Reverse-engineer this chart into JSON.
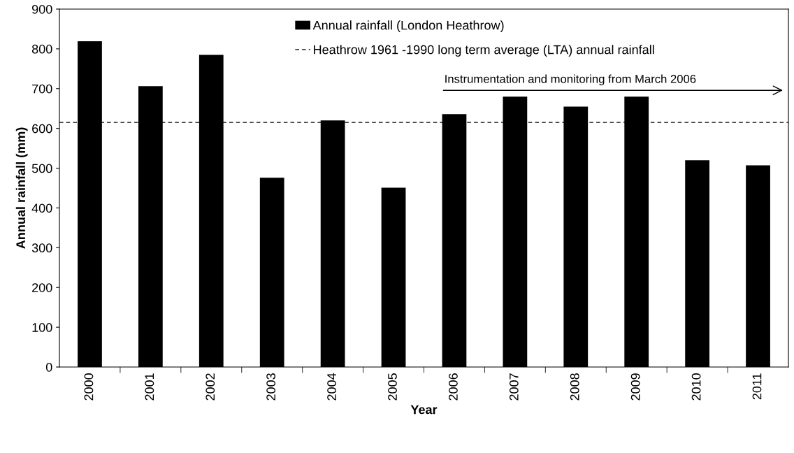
{
  "chart_data": {
    "type": "bar",
    "categories": [
      "2000",
      "2001",
      "2002",
      "2003",
      "2004",
      "2005",
      "2006",
      "2007",
      "2008",
      "2009",
      "2010",
      "2011"
    ],
    "series": [
      {
        "name": "Annual rainfall (London Heathrow)",
        "color": "#000000",
        "values": [
          819,
          706,
          785,
          476,
          620,
          451,
          636,
          680,
          655,
          680,
          520,
          507
        ]
      }
    ],
    "xlabel": "Year",
    "ylabel": "Annual rainfall (mm)",
    "ylim": [
      0,
      900
    ],
    "yticks": [
      0,
      100,
      200,
      300,
      400,
      500,
      600,
      700,
      800,
      900
    ],
    "ref_lines": [
      {
        "axis": "y",
        "value": 615,
        "label": "Heathrow 1961 -1990 long term average (LTA) annual rainfall",
        "color": "#000000",
        "line_style": "dashed"
      }
    ],
    "annotations": [
      "Instrumentation and monitoring from March 2006"
    ],
    "grid": false,
    "legend": "top"
  }
}
